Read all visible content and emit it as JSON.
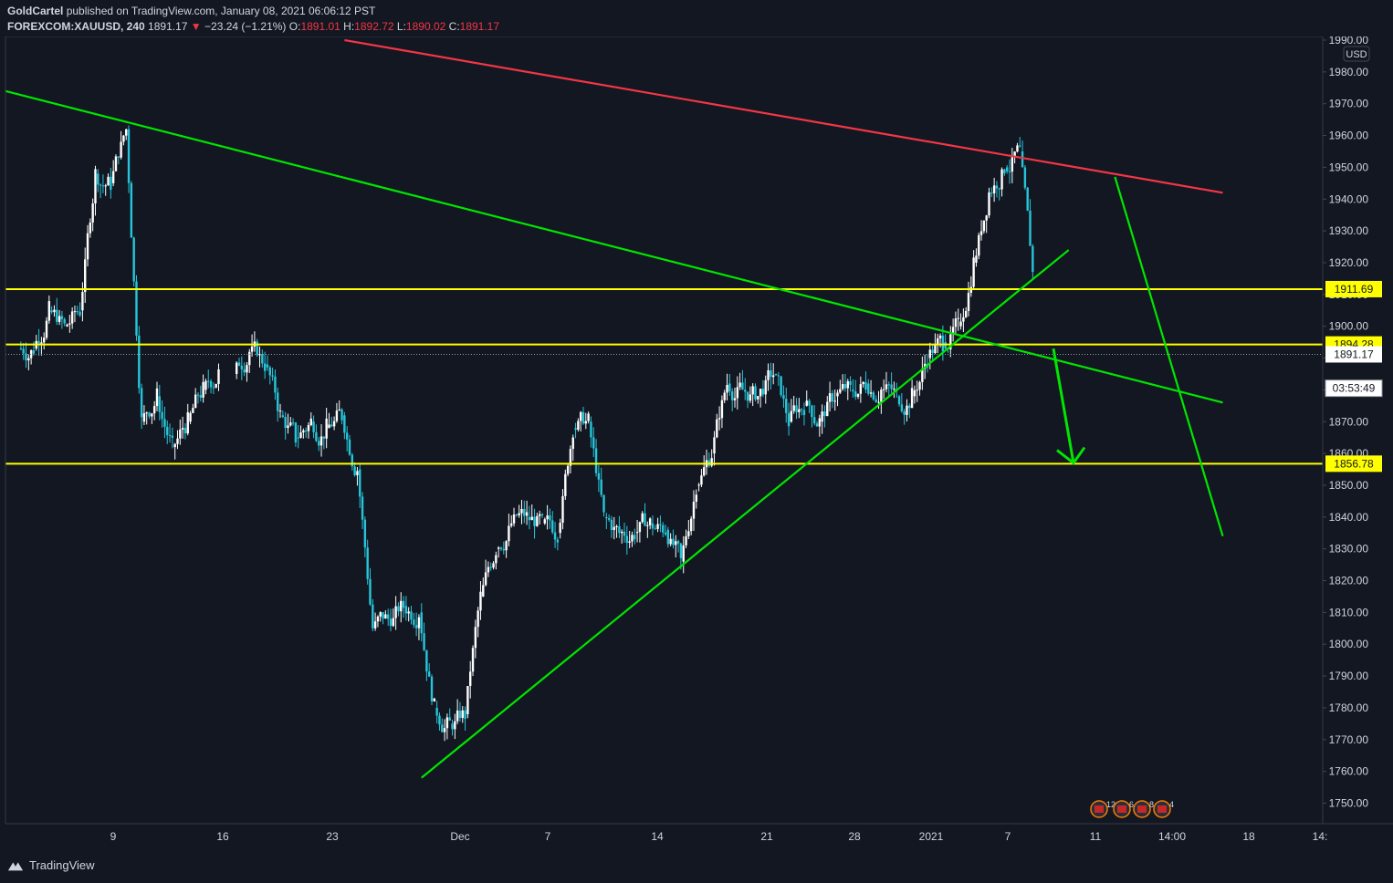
{
  "header": {
    "author": "GoldCartel",
    "published_text": "published on TradingView.com, January 08, 2021 06:06:12 PST",
    "symbol": "FOREXCOM:XAUUSD, 240",
    "last": "1891.17",
    "change": "−23.24 (−1.21%)",
    "o_label": "O:",
    "o_value": "1891.01",
    "h_label": "H:",
    "h_value": "1892.72",
    "l_label": "L:",
    "l_value": "1890.02",
    "c_label": "C:",
    "c_value": "1891.17"
  },
  "footer": {
    "logo_text": "TradingView"
  },
  "chart_data": {
    "type": "candlestick",
    "currency": "USD",
    "ylim": [
      1743,
      1990
    ],
    "y_ticks": [
      1990,
      1980,
      1970,
      1960,
      1950,
      1940,
      1930,
      1920,
      1910,
      1900,
      1890,
      1880,
      1870,
      1860,
      1850,
      1840,
      1830,
      1820,
      1810,
      1800,
      1790,
      1780,
      1770,
      1760,
      1750
    ],
    "y_tick_labels": [
      "1990.00",
      "1980.00",
      "1970.00",
      "1960.00",
      "1950.00",
      "1940.00",
      "1930.00",
      "1920.00",
      "1910.00",
      "1900.00",
      "1890.00",
      "1880.00",
      "1870.00",
      "1860.00",
      "1850.00",
      "1840.00",
      "1830.00",
      "1820.00",
      "1810.00",
      "1800.00",
      "1790.00",
      "1780.00",
      "1770.00",
      "1760.00",
      "1750.00"
    ],
    "x_ticks": [
      "9",
      "16",
      "23",
      "Dec",
      "7",
      "14",
      "21",
      "28",
      "2021",
      "7",
      "11",
      "14:00",
      "18",
      "14:"
    ],
    "price_labels": [
      {
        "label": "1911.69",
        "value": 1911.69,
        "style": "level"
      },
      {
        "label": "1894.28",
        "value": 1894.28,
        "style": "level"
      },
      {
        "label": "1891.17",
        "value": 1891.17,
        "style": "last"
      },
      {
        "label": "03:53:49",
        "value": 1880.5,
        "style": "countdown"
      },
      {
        "label": "1856.78",
        "value": 1856.78,
        "style": "level"
      }
    ],
    "horizontal_levels": [
      1911.69,
      1894.28,
      1856.78
    ],
    "last_price": 1891.17,
    "series": [
      {
        "name": "XAUUSD 4h close (approx.)",
        "points": [
          [
            "Nov 2",
            1893
          ],
          [
            "Nov 3",
            1905
          ],
          [
            "Nov 4",
            1900
          ],
          [
            "Nov 5",
            1905
          ],
          [
            "Nov 6",
            1948
          ],
          [
            "Nov 7",
            1945
          ],
          [
            "Nov 8",
            1962
          ],
          [
            "Nov 9",
            1870
          ],
          [
            "Nov 10",
            1878
          ],
          [
            "Nov 11",
            1862
          ],
          [
            "Nov 12",
            1870
          ],
          [
            "Nov 13",
            1880
          ],
          [
            "Nov 14",
            1885
          ],
          [
            "Nov 16",
            1892
          ],
          [
            "Nov 17",
            1888
          ],
          [
            "Nov 18",
            1872
          ],
          [
            "Nov 19",
            1865
          ],
          [
            "Nov 20",
            1870
          ],
          [
            "Nov 21",
            1868
          ],
          [
            "Nov 22",
            1872
          ],
          [
            "Nov 23",
            1855
          ],
          [
            "Nov 24",
            1805
          ],
          [
            "Nov 25",
            1808
          ],
          [
            "Nov 26",
            1812
          ],
          [
            "Nov 27",
            1810
          ],
          [
            "Nov 28",
            1780
          ],
          [
            "Nov 29",
            1775
          ],
          [
            "Nov 30",
            1778
          ],
          [
            "Dec 1",
            1815
          ],
          [
            "Dec 2",
            1830
          ],
          [
            "Dec 3",
            1838
          ],
          [
            "Dec 4",
            1840
          ],
          [
            "Dec 5",
            1838
          ],
          [
            "Dec 6",
            1835
          ],
          [
            "Dec 7",
            1868
          ],
          [
            "Dec 8",
            1870
          ],
          [
            "Dec 9",
            1840
          ],
          [
            "Dec 10",
            1835
          ],
          [
            "Dec 11",
            1835
          ],
          [
            "Dec 12",
            1838
          ],
          [
            "Dec 13",
            1836
          ],
          [
            "Dec 14",
            1826
          ],
          [
            "Dec 15",
            1850
          ],
          [
            "Dec 16",
            1860
          ],
          [
            "Dec 17",
            1882
          ],
          [
            "Dec 18",
            1880
          ],
          [
            "Dec 19",
            1878
          ],
          [
            "Dec 20",
            1885
          ],
          [
            "Dec 21",
            1870
          ],
          [
            "Dec 22",
            1875
          ],
          [
            "Dec 23",
            1870
          ],
          [
            "Dec 24",
            1878
          ],
          [
            "Dec 25",
            1880
          ],
          [
            "Dec 26",
            1882
          ],
          [
            "Dec 27",
            1880
          ],
          [
            "Dec 28",
            1878
          ],
          [
            "Dec 29",
            1878
          ],
          [
            "Dec 30",
            1890
          ],
          [
            "Dec 31",
            1895
          ],
          [
            "Jan 1",
            1900
          ],
          [
            "Jan 2",
            1920
          ],
          [
            "Jan 3",
            1942
          ],
          [
            "Jan 4",
            1950
          ],
          [
            "Jan 5",
            1955
          ],
          [
            "Jan 6",
            1908
          ],
          [
            "Jan 7",
            1912
          ],
          [
            "Jan 8",
            1891
          ]
        ]
      }
    ],
    "trendlines": [
      {
        "color": "#f23645",
        "from": [
          "Nov 23",
          1990
        ],
        "to": [
          "Jan 19",
          1942
        ]
      },
      {
        "color": "#00e600",
        "from": [
          "Nov 1",
          1974
        ],
        "to": [
          "Jan 19",
          1876
        ]
      },
      {
        "color": "#00e600",
        "from": [
          "Nov 28",
          1758
        ],
        "to": [
          "Jan 9",
          1924
        ]
      },
      {
        "color": "#00e600",
        "from": [
          "Jan 12",
          1947
        ],
        "to": [
          "Jan 19",
          1834
        ]
      }
    ],
    "arrow": {
      "color": "#00e600",
      "from": [
        "Jan 8",
        1893
      ],
      "to": [
        "Jan 9",
        1857
      ]
    },
    "event_badges": [
      "12",
      "6",
      "8",
      "4"
    ]
  }
}
